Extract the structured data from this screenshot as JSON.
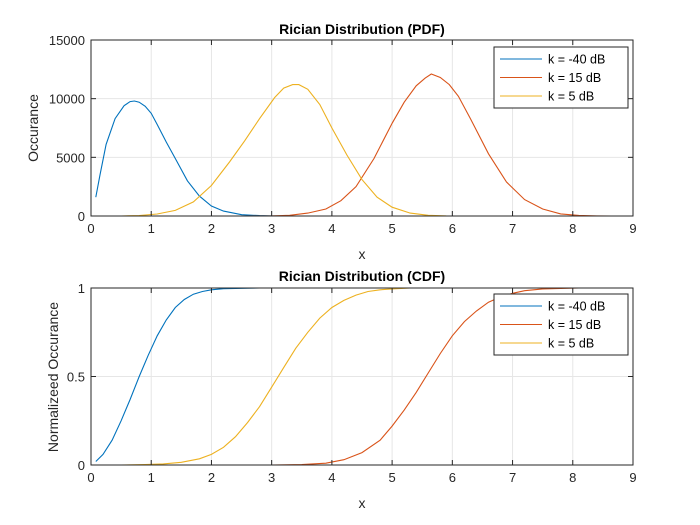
{
  "chart_data": [
    {
      "type": "line",
      "title": "Rician Distribution (PDF)",
      "xlabel": "x",
      "ylabel": "Occurance",
      "xlim": [
        0,
        9
      ],
      "ylim": [
        0,
        15000
      ],
      "xticks": [
        0,
        1,
        2,
        3,
        4,
        5,
        6,
        7,
        8,
        9
      ],
      "yticks": [
        0,
        5000,
        10000,
        15000
      ],
      "ytick_labels": [
        "0",
        "5000",
        "10000",
        "15000"
      ],
      "grid": true,
      "legend_position": "top-right",
      "series": [
        {
          "name": "k = -40 dB",
          "color": "#0072BD",
          "x": [
            0.08,
            0.15,
            0.25,
            0.4,
            0.55,
            0.65,
            0.72,
            0.8,
            0.9,
            1.0,
            1.1,
            1.25,
            1.4,
            1.6,
            1.8,
            2.0,
            2.2,
            2.5,
            2.8,
            3.0,
            3.3,
            3.5
          ],
          "y": [
            1600,
            3500,
            6100,
            8300,
            9400,
            9750,
            9800,
            9700,
            9350,
            8750,
            7800,
            6300,
            4900,
            3000,
            1700,
            850,
            420,
            110,
            30,
            10,
            2,
            0
          ]
        },
        {
          "name": "k = 15 dB",
          "color": "#D95319",
          "x": [
            2.5,
            3.0,
            3.3,
            3.6,
            3.9,
            4.15,
            4.4,
            4.7,
            5.0,
            5.2,
            5.4,
            5.55,
            5.65,
            5.8,
            5.95,
            6.1,
            6.3,
            6.6,
            6.9,
            7.2,
            7.5,
            7.8,
            8.1,
            8.4,
            8.65
          ],
          "y": [
            0,
            10,
            60,
            250,
            600,
            1300,
            2500,
            4900,
            7900,
            9700,
            11100,
            11750,
            12100,
            11800,
            11200,
            10200,
            8300,
            5300,
            2900,
            1400,
            600,
            180,
            50,
            10,
            0
          ]
        },
        {
          "name": "k = 5 dB",
          "color": "#EDB120",
          "x": [
            0.5,
            0.8,
            1.1,
            1.4,
            1.7,
            2.0,
            2.3,
            2.55,
            2.8,
            3.05,
            3.2,
            3.35,
            3.45,
            3.6,
            3.8,
            4.0,
            4.25,
            4.5,
            4.75,
            5.0,
            5.3,
            5.6,
            5.9,
            6.3
          ],
          "y": [
            0,
            40,
            170,
            480,
            1200,
            2600,
            4600,
            6400,
            8300,
            10100,
            10900,
            11200,
            11200,
            10800,
            9500,
            7500,
            5200,
            3100,
            1600,
            750,
            250,
            60,
            12,
            0
          ]
        }
      ]
    },
    {
      "type": "line",
      "title": "Rician Distribution (CDF)",
      "xlabel": "x",
      "ylabel": "Normalizeed Occurance",
      "xlim": [
        0,
        9
      ],
      "ylim": [
        0,
        1
      ],
      "xticks": [
        0,
        1,
        2,
        3,
        4,
        5,
        6,
        7,
        8,
        9
      ],
      "yticks": [
        0,
        0.5,
        1
      ],
      "ytick_labels": [
        "0",
        "0.5",
        "1"
      ],
      "grid": true,
      "legend_position": "top-right",
      "series": [
        {
          "name": "k = -40 dB",
          "color": "#0072BD",
          "x": [
            0.08,
            0.2,
            0.35,
            0.5,
            0.65,
            0.8,
            0.95,
            1.1,
            1.25,
            1.4,
            1.55,
            1.7,
            1.85,
            2.0,
            2.2,
            2.4,
            2.6,
            2.8,
            3.0,
            3.3,
            3.5
          ],
          "y": [
            0.02,
            0.06,
            0.14,
            0.25,
            0.37,
            0.5,
            0.62,
            0.73,
            0.82,
            0.89,
            0.935,
            0.965,
            0.98,
            0.99,
            0.996,
            0.998,
            0.999,
            1.0,
            1.0,
            1.0,
            1.0
          ]
        },
        {
          "name": "k = 15 dB",
          "color": "#D95319",
          "x": [
            2.4,
            3.0,
            3.5,
            3.9,
            4.2,
            4.5,
            4.8,
            5.0,
            5.2,
            5.4,
            5.6,
            5.8,
            6.0,
            6.2,
            6.4,
            6.6,
            6.8,
            7.0,
            7.2,
            7.5,
            7.8,
            8.1,
            8.4,
            8.65
          ],
          "y": [
            0,
            0,
            0.002,
            0.01,
            0.03,
            0.07,
            0.14,
            0.22,
            0.31,
            0.41,
            0.52,
            0.63,
            0.73,
            0.81,
            0.87,
            0.92,
            0.95,
            0.97,
            0.985,
            0.995,
            0.998,
            1.0,
            1.0,
            1.0
          ]
        },
        {
          "name": "k = 5 dB",
          "color": "#EDB120",
          "x": [
            0.5,
            0.9,
            1.2,
            1.5,
            1.8,
            2.0,
            2.2,
            2.4,
            2.6,
            2.8,
            3.0,
            3.2,
            3.4,
            3.6,
            3.8,
            4.0,
            4.2,
            4.4,
            4.6,
            4.8,
            5.0,
            5.3,
            5.7,
            6.3
          ],
          "y": [
            0,
            0.002,
            0.006,
            0.015,
            0.035,
            0.06,
            0.1,
            0.16,
            0.24,
            0.33,
            0.44,
            0.55,
            0.66,
            0.75,
            0.83,
            0.89,
            0.93,
            0.96,
            0.98,
            0.99,
            0.995,
            1.0,
            1.0,
            1.0
          ]
        }
      ]
    }
  ]
}
